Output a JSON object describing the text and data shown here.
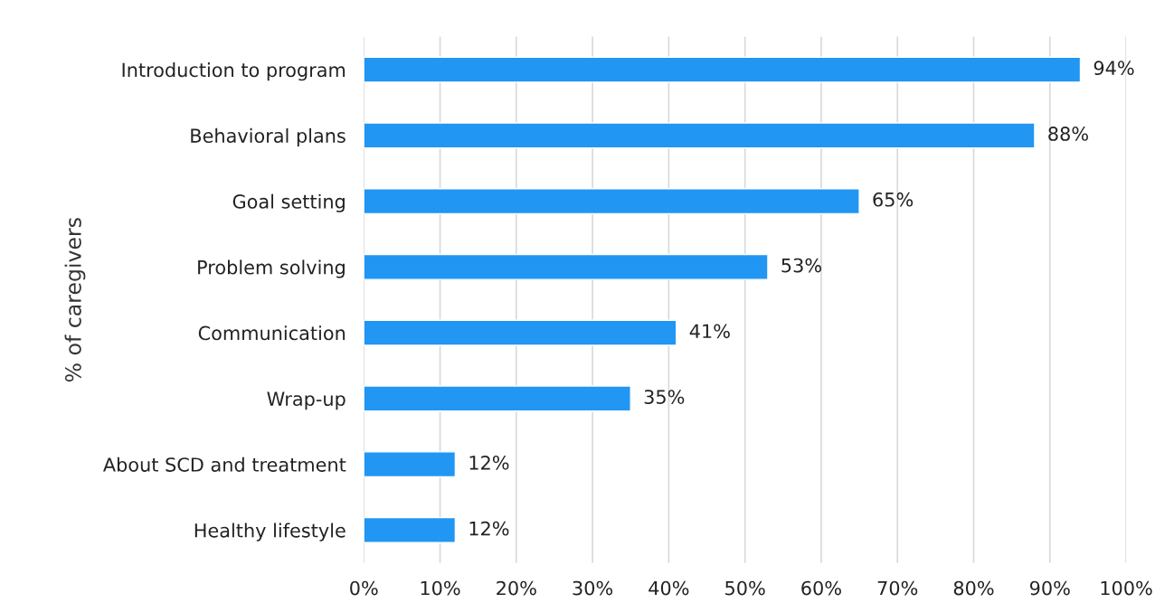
{
  "chart_data": {
    "type": "bar",
    "orientation": "horizontal",
    "ylabel": "% of caregivers",
    "categories": [
      "Introduction to program",
      "Behavioral plans",
      "Goal setting",
      "Problem solving",
      "Communication",
      "Wrap-up",
      "About SCD and treatment",
      "Healthy lifestyle"
    ],
    "values": [
      94,
      88,
      65,
      53,
      41,
      35,
      12,
      12
    ],
    "value_labels": [
      "94%",
      "88%",
      "65%",
      "53%",
      "41%",
      "35%",
      "12%",
      "12%"
    ],
    "color": "#2196f3",
    "xlim": [
      0,
      100
    ],
    "xticks": [
      {
        "value": 0,
        "label": "0%"
      },
      {
        "value": 10,
        "label": "10%"
      },
      {
        "value": 20,
        "label": "20%"
      },
      {
        "value": 30,
        "label": "30%"
      },
      {
        "value": 40,
        "label": "40%"
      },
      {
        "value": 50,
        "label": "50%"
      },
      {
        "value": 60,
        "label": "60%"
      },
      {
        "value": 70,
        "label": "70%"
      },
      {
        "value": 80,
        "label": "80%"
      },
      {
        "value": 90,
        "label": "90%"
      },
      {
        "value": 100,
        "label": "100%"
      }
    ],
    "grid": "x"
  }
}
